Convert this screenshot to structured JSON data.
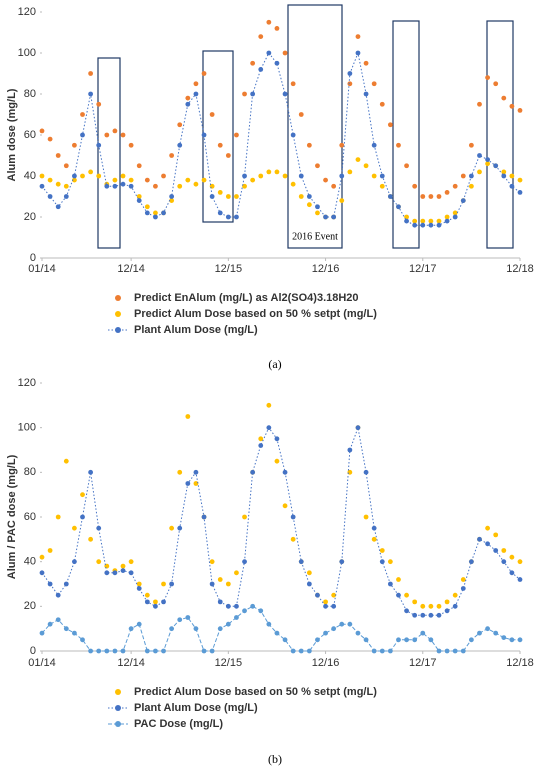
{
  "chart_data": [
    {
      "type": "line",
      "y_label": "Alum dose (mg/L)",
      "caption": "(a)",
      "annotation": "2016 Event",
      "xlim": [
        "2014-01",
        "2018-12"
      ],
      "xticks": [
        {
          "value": "2014-01",
          "label": "01/14"
        },
        {
          "value": "2014-12",
          "label": "12/14"
        },
        {
          "value": "2015-12",
          "label": "12/15"
        },
        {
          "value": "2016-12",
          "label": "12/16"
        },
        {
          "value": "2017-12",
          "label": "12/17"
        },
        {
          "value": "2018-12",
          "label": "12/18"
        }
      ],
      "ylim": [
        0,
        120
      ],
      "yticks": [
        0,
        20,
        40,
        60,
        80,
        100,
        120
      ],
      "grid": false,
      "legend": "bottom",
      "x": [
        "2014-01",
        "2014-02",
        "2014-03",
        "2014-04",
        "2014-05",
        "2014-06",
        "2014-07",
        "2014-08",
        "2014-09",
        "2014-10",
        "2014-11",
        "2014-12",
        "2015-01",
        "2015-02",
        "2015-03",
        "2015-04",
        "2015-05",
        "2015-06",
        "2015-07",
        "2015-08",
        "2015-09",
        "2015-10",
        "2015-11",
        "2015-12",
        "2016-01",
        "2016-02",
        "2016-03",
        "2016-04",
        "2016-05",
        "2016-06",
        "2016-07",
        "2016-08",
        "2016-09",
        "2016-10",
        "2016-11",
        "2016-12",
        "2017-01",
        "2017-02",
        "2017-03",
        "2017-04",
        "2017-05",
        "2017-06",
        "2017-07",
        "2017-08",
        "2017-09",
        "2017-10",
        "2017-11",
        "2017-12",
        "2018-01",
        "2018-02",
        "2018-03",
        "2018-04",
        "2018-05",
        "2018-06",
        "2018-07",
        "2018-08",
        "2018-09",
        "2018-10",
        "2018-11",
        "2018-12"
      ],
      "series": [
        {
          "name": "Predict EnAlum (mg/L) as Al2(SO4)3.18H20",
          "color": "#ed7d31",
          "line_style": "none",
          "values": [
            62,
            58,
            50,
            45,
            55,
            70,
            90,
            75,
            60,
            62,
            60,
            55,
            45,
            38,
            35,
            40,
            50,
            65,
            78,
            85,
            90,
            70,
            55,
            50,
            60,
            80,
            95,
            108,
            115,
            112,
            100,
            85,
            70,
            55,
            45,
            38,
            35,
            55,
            85,
            108,
            95,
            85,
            75,
            65,
            55,
            45,
            35,
            30,
            30,
            30,
            32,
            35,
            40,
            55,
            75,
            88,
            85,
            78,
            74,
            72
          ]
        },
        {
          "name": "Predict Alum Dose based on 50 % setpt (mg/L)",
          "color": "#ffc000",
          "line_style": "none",
          "values": [
            40,
            38,
            36,
            35,
            38,
            40,
            42,
            40,
            36,
            38,
            40,
            38,
            30,
            25,
            22,
            22,
            28,
            35,
            38,
            36,
            38,
            35,
            32,
            30,
            30,
            35,
            38,
            40,
            42,
            42,
            40,
            36,
            30,
            26,
            22,
            20,
            20,
            28,
            42,
            48,
            45,
            40,
            35,
            30,
            25,
            20,
            18,
            18,
            18,
            18,
            20,
            22,
            28,
            35,
            42,
            46,
            45,
            42,
            40,
            38
          ]
        },
        {
          "name": "Plant Alum Dose (mg/L)",
          "color": "#4472c4",
          "line_style": "dotted",
          "values": [
            35,
            30,
            25,
            30,
            40,
            60,
            80,
            55,
            35,
            35,
            36,
            35,
            28,
            22,
            20,
            22,
            30,
            55,
            75,
            80,
            60,
            30,
            22,
            20,
            20,
            40,
            80,
            92,
            100,
            95,
            80,
            60,
            40,
            30,
            25,
            20,
            20,
            40,
            90,
            100,
            80,
            55,
            40,
            30,
            25,
            18,
            16,
            16,
            16,
            16,
            18,
            20,
            28,
            40,
            50,
            48,
            45,
            40,
            35,
            32
          ]
        }
      ]
    },
    {
      "type": "line",
      "y_label": "Alum / PAC dose (mg/L)",
      "caption": "(b)",
      "xlim": [
        "2014-01",
        "2018-12"
      ],
      "xticks": [
        {
          "value": "2014-01",
          "label": "01/14"
        },
        {
          "value": "2014-12",
          "label": "12/14"
        },
        {
          "value": "2015-12",
          "label": "12/15"
        },
        {
          "value": "2016-12",
          "label": "12/16"
        },
        {
          "value": "2017-12",
          "label": "12/17"
        },
        {
          "value": "2018-12",
          "label": "12/18"
        }
      ],
      "ylim": [
        0,
        120
      ],
      "yticks": [
        0,
        20,
        40,
        60,
        80,
        100,
        120
      ],
      "grid": false,
      "legend": "bottom",
      "x": [
        "2014-01",
        "2014-02",
        "2014-03",
        "2014-04",
        "2014-05",
        "2014-06",
        "2014-07",
        "2014-08",
        "2014-09",
        "2014-10",
        "2014-11",
        "2014-12",
        "2015-01",
        "2015-02",
        "2015-03",
        "2015-04",
        "2015-05",
        "2015-06",
        "2015-07",
        "2015-08",
        "2015-09",
        "2015-10",
        "2015-11",
        "2015-12",
        "2016-01",
        "2016-02",
        "2016-03",
        "2016-04",
        "2016-05",
        "2016-06",
        "2016-07",
        "2016-08",
        "2016-09",
        "2016-10",
        "2016-11",
        "2016-12",
        "2017-01",
        "2017-02",
        "2017-03",
        "2017-04",
        "2017-05",
        "2017-06",
        "2017-07",
        "2017-08",
        "2017-09",
        "2017-10",
        "2017-11",
        "2017-12",
        "2018-01",
        "2018-02",
        "2018-03",
        "2018-04",
        "2018-05",
        "2018-06",
        "2018-07",
        "2018-08",
        "2018-09",
        "2018-10",
        "2018-11",
        "2018-12"
      ],
      "series": [
        {
          "name": "Predict Alum Dose based on 50 % setpt (mg/L)",
          "color": "#ffc000",
          "line_style": "none",
          "values": [
            42,
            45,
            60,
            85,
            55,
            70,
            50,
            40,
            38,
            36,
            38,
            40,
            30,
            25,
            22,
            30,
            55,
            80,
            105,
            75,
            60,
            40,
            32,
            30,
            35,
            60,
            80,
            95,
            110,
            85,
            65,
            50,
            40,
            35,
            25,
            22,
            25,
            40,
            80,
            100,
            60,
            50,
            45,
            40,
            32,
            25,
            22,
            20,
            20,
            20,
            22,
            25,
            32,
            40,
            50,
            55,
            52,
            45,
            42,
            40
          ]
        },
        {
          "name": "Plant Alum Dose (mg/L)",
          "color": "#4472c4",
          "line_style": "dotted",
          "values": [
            35,
            30,
            25,
            30,
            40,
            60,
            80,
            55,
            35,
            35,
            36,
            35,
            28,
            22,
            20,
            22,
            30,
            55,
            75,
            80,
            60,
            30,
            22,
            20,
            20,
            40,
            80,
            92,
            100,
            95,
            80,
            60,
            40,
            30,
            25,
            20,
            20,
            40,
            90,
            100,
            80,
            55,
            40,
            30,
            25,
            18,
            16,
            16,
            16,
            16,
            18,
            20,
            28,
            40,
            50,
            48,
            45,
            40,
            35,
            32
          ]
        },
        {
          "name": "PAC Dose (mg/L)",
          "color": "#5b9bd5",
          "line_style": "dashed",
          "values": [
            8,
            12,
            14,
            10,
            8,
            5,
            0,
            0,
            0,
            0,
            0,
            10,
            12,
            0,
            0,
            0,
            10,
            14,
            15,
            10,
            0,
            0,
            10,
            12,
            15,
            18,
            20,
            18,
            12,
            8,
            5,
            0,
            0,
            0,
            5,
            8,
            10,
            12,
            12,
            8,
            5,
            0,
            0,
            0,
            5,
            5,
            5,
            8,
            5,
            0,
            0,
            0,
            0,
            5,
            8,
            10,
            8,
            6,
            5,
            5
          ]
        }
      ]
    }
  ]
}
